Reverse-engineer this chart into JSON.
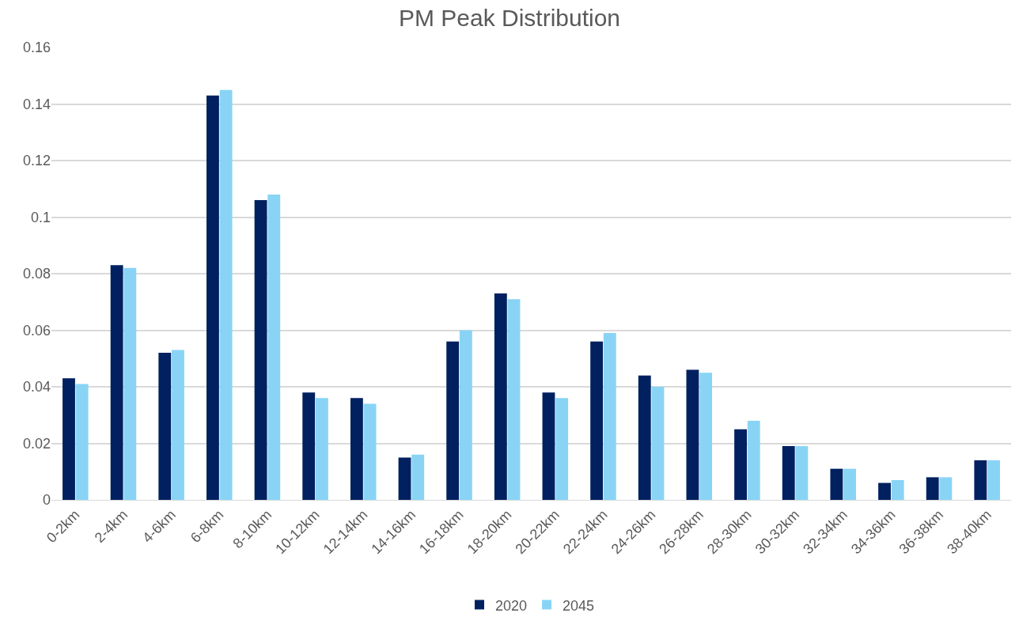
{
  "chart_data": {
    "type": "bar",
    "title": "PM Peak Distribution",
    "categories": [
      "0-2km",
      "2-4km",
      "4-6km",
      "6-8km",
      "8-10km",
      "10-12km",
      "12-14km",
      "14-16km",
      "16-18km",
      "18-20km",
      "20-22km",
      "22-24km",
      "24-26km",
      "26-28km",
      "28-30km",
      "30-32km",
      "32-34km",
      "34-36km",
      "36-38km",
      "38-40km"
    ],
    "series": [
      {
        "name": "2020",
        "color": "#002060",
        "values": [
          0.043,
          0.083,
          0.052,
          0.143,
          0.106,
          0.038,
          0.036,
          0.015,
          0.056,
          0.073,
          0.038,
          0.056,
          0.044,
          0.046,
          0.025,
          0.019,
          0.011,
          0.006,
          0.008,
          0.014
        ]
      },
      {
        "name": "2045",
        "color": "#89d4f5",
        "values": [
          0.041,
          0.082,
          0.053,
          0.145,
          0.108,
          0.036,
          0.034,
          0.016,
          0.06,
          0.071,
          0.036,
          0.059,
          0.04,
          0.045,
          0.028,
          0.019,
          0.011,
          0.007,
          0.008,
          0.014
        ]
      }
    ],
    "ylim": [
      0,
      0.16
    ],
    "yticks": [
      0,
      0.02,
      0.04,
      0.06,
      0.08,
      {
        "value": 0.1,
        "label": "0.1"
      },
      0.12,
      0.14,
      0.16
    ],
    "grid": "y",
    "legend": "bottom"
  }
}
